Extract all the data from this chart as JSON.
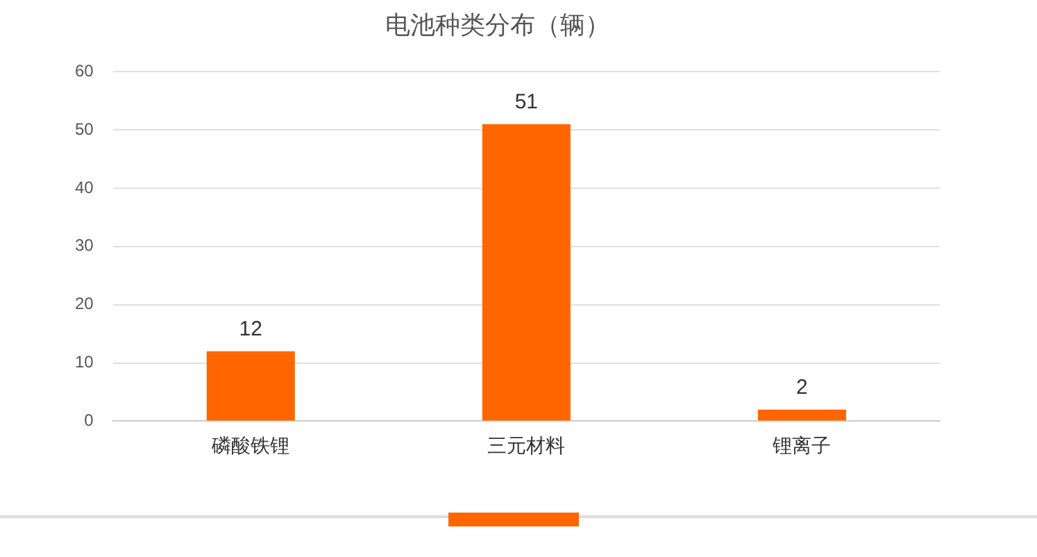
{
  "chart_data": {
    "type": "bar",
    "title": "电池种类分布（辆）",
    "categories": [
      "磷酸铁锂",
      "三元材料",
      "锂离子"
    ],
    "values": [
      12,
      51,
      2
    ],
    "color": "#ff6600",
    "ylim": [
      0,
      60
    ],
    "yticks": [
      0,
      10,
      20,
      30,
      40,
      50,
      60
    ],
    "grid": "y",
    "legend": false,
    "data_labels": true
  }
}
